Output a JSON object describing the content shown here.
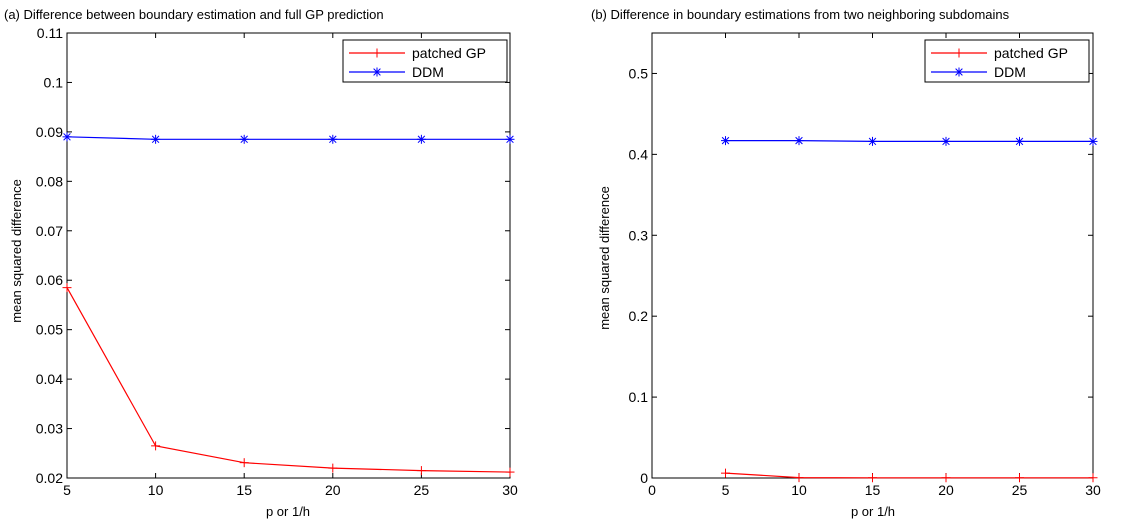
{
  "chart_data": [
    {
      "type": "line",
      "title": "(a) Difference between boundary estimation and full GP prediction",
      "xlabel": "p or 1/h",
      "ylabel": "mean squared difference",
      "xlim": [
        5,
        30
      ],
      "ylim": [
        0.02,
        0.11
      ],
      "xticks": [
        5,
        10,
        15,
        20,
        25,
        30
      ],
      "xtick_labels": [
        "5",
        "10",
        "15",
        "20",
        "25",
        "30"
      ],
      "yticks": [
        0.02,
        0.03,
        0.04,
        0.05,
        0.06,
        0.07,
        0.08,
        0.09,
        0.1,
        0.11
      ],
      "ytick_labels": [
        "0.02",
        "0.03",
        "0.04",
        "0.05",
        "0.06",
        "0.07",
        "0.08",
        "0.09",
        "0.1",
        "0.11"
      ],
      "grid": false,
      "legend_position": "top-right",
      "series": [
        {
          "name": "patched GP",
          "color": "#ff0000",
          "marker": "plus",
          "x": [
            5,
            10,
            15,
            20,
            25,
            30
          ],
          "y": [
            0.0585,
            0.0265,
            0.0231,
            0.022,
            0.0215,
            0.0212
          ]
        },
        {
          "name": "DDM",
          "color": "#0000ff",
          "marker": "star",
          "x": [
            5,
            10,
            15,
            20,
            25,
            30
          ],
          "y": [
            0.089,
            0.0885,
            0.0885,
            0.0885,
            0.0885,
            0.0885
          ]
        }
      ]
    },
    {
      "type": "line",
      "title": "(b) Difference in boundary estimations from two neighboring subdomains",
      "xlabel": "p or 1/h",
      "ylabel": "mean squared difference",
      "xlim": [
        0,
        30
      ],
      "ylim": [
        0,
        0.55
      ],
      "xticks": [
        0,
        5,
        10,
        15,
        20,
        25,
        30
      ],
      "xtick_labels": [
        "0",
        "5",
        "10",
        "15",
        "20",
        "25",
        "30"
      ],
      "yticks": [
        0,
        0.1,
        0.2,
        0.3,
        0.4,
        0.5
      ],
      "ytick_labels": [
        "0",
        "0.1",
        "0.2",
        "0.3",
        "0.4",
        "0.5"
      ],
      "grid": false,
      "legend_position": "top-right",
      "series": [
        {
          "name": "patched GP",
          "color": "#ff0000",
          "marker": "plus",
          "x": [
            5,
            10,
            15,
            20,
            25,
            30
          ],
          "y": [
            0.006,
            0.0005,
            0.0003,
            0.0003,
            0.0003,
            0.0003
          ]
        },
        {
          "name": "DDM",
          "color": "#0000ff",
          "marker": "star",
          "x": [
            5,
            10,
            15,
            20,
            25,
            30
          ],
          "y": [
            0.417,
            0.417,
            0.416,
            0.416,
            0.416,
            0.416
          ]
        }
      ]
    }
  ]
}
